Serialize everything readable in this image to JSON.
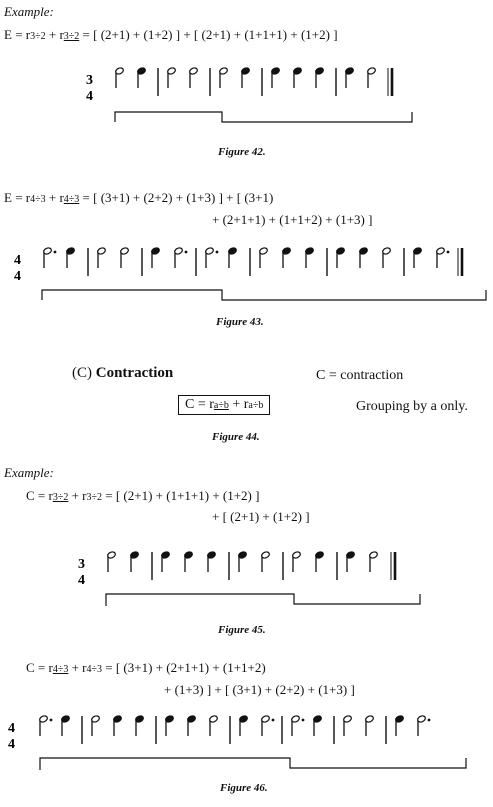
{
  "fig42": {
    "example_label": "Example:",
    "eq_lhs": "E = r",
    "eq_sub1": "3÷2",
    "eq_plus": " + r",
    "eq_sub2": "3÷2",
    "eq_rhs": " = [ (2+1) + (1+2) ] + [ (2+1) + (1+1+1) + (1+2) ]",
    "time_top": "3",
    "time_bottom": "4",
    "caption": "Figure 42."
  },
  "fig43": {
    "eq_lhs": "E = r",
    "eq_sub1": "4÷3",
    "eq_plus": " + r",
    "eq_sub2": "4÷3",
    "eq_rhs_line1": " = [ (3+1) + (2+2) + (1+3) ] + [ (3+1)",
    "eq_rhs_line2": "+ (2+1+1) + (1+1+2) + (1+3) ]",
    "time_top": "4",
    "time_bottom": "4",
    "caption": "Figure 43."
  },
  "fig44": {
    "section_label": "(C)",
    "section_title": "Contraction",
    "definition": "C = contraction",
    "formula_lhs": "C = r",
    "formula_sub1": "a÷b",
    "formula_plus": " + r",
    "formula_sub2": "a÷b",
    "grouping_text": "Grouping by a only.",
    "caption": "Figure 44."
  },
  "fig45": {
    "example_label": "Example:",
    "eq_lhs": "C = r",
    "eq_sub1": "3÷2",
    "eq_plus": " + r",
    "eq_sub2": "3÷2",
    "eq_rhs_line1": " = [ (2+1) + (1+1+1) + (1+2) ]",
    "eq_rhs_line2": "+ [ (2+1) + (1+2) ]",
    "time_top": "3",
    "time_bottom": "4",
    "caption": "Figure 45."
  },
  "fig46": {
    "eq_lhs": "C = r",
    "eq_sub1": "4÷3",
    "eq_plus": " + r",
    "eq_sub2": "4÷3",
    "eq_rhs_line1": " = [ (3+1) + (2+1+1) + (1+1+2)",
    "eq_rhs_line2": "+ (1+3) ] + [ (3+1) + (2+2) + (1+3) ]",
    "time_top": "4",
    "time_bottom": "4",
    "caption": "Figure 46."
  }
}
